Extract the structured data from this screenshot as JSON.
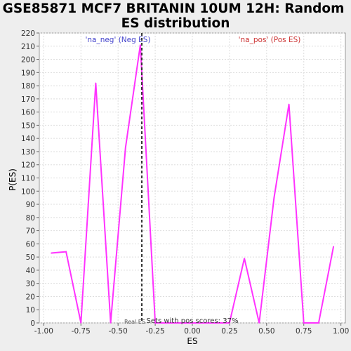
{
  "chart_data": {
    "type": "line",
    "title_line1": "GSE85871 MCF7 BRITANIN 10UM 12H: Random",
    "title_line2": "ES distribution",
    "xlabel": "ES",
    "ylabel": "P(ES)",
    "xlim": [
      -1.03,
      1.03
    ],
    "ylim": [
      0,
      220
    ],
    "xticks": [
      -1.0,
      -0.75,
      -0.5,
      -0.25,
      0.0,
      0.25,
      0.5,
      0.75,
      1.0
    ],
    "xtick_labels": [
      "-1.00",
      "-0.75",
      "-0.50",
      "-0.25",
      "0.00",
      "0.25",
      "0.50",
      "0.75",
      "1.00"
    ],
    "yticks": [
      0,
      10,
      20,
      30,
      40,
      50,
      60,
      70,
      80,
      90,
      100,
      110,
      120,
      130,
      140,
      150,
      160,
      170,
      180,
      190,
      200,
      210,
      220
    ],
    "grid": true,
    "series": [
      {
        "name": "P(ES)",
        "color": "#ff33ff",
        "x": [
          -0.95,
          -0.85,
          -0.75,
          -0.65,
          -0.55,
          -0.45,
          -0.35,
          -0.25,
          -0.15,
          -0.05,
          0.05,
          0.15,
          0.25,
          0.35,
          0.45,
          0.55,
          0.65,
          0.75,
          0.85,
          0.95
        ],
        "values": [
          53,
          54,
          0,
          182,
          0,
          133,
          211,
          0,
          0,
          0,
          0,
          0,
          0,
          49,
          0,
          95,
          166,
          0,
          0,
          58
        ]
      }
    ],
    "real_es_line": {
      "x": -0.34,
      "color": "#333333"
    },
    "annotations": {
      "neg": "'na_neg' (Neg ES)",
      "pos": "'na_pos' (Pos ES)",
      "real_es_prefix": "Real ES",
      "footer": "Sets with pos scores: 37%"
    },
    "colors": {
      "neg_text": "#4444cc",
      "pos_text": "#cc3333",
      "plot_bg": "#ffffff",
      "page_bg": "#eeeeee"
    }
  }
}
